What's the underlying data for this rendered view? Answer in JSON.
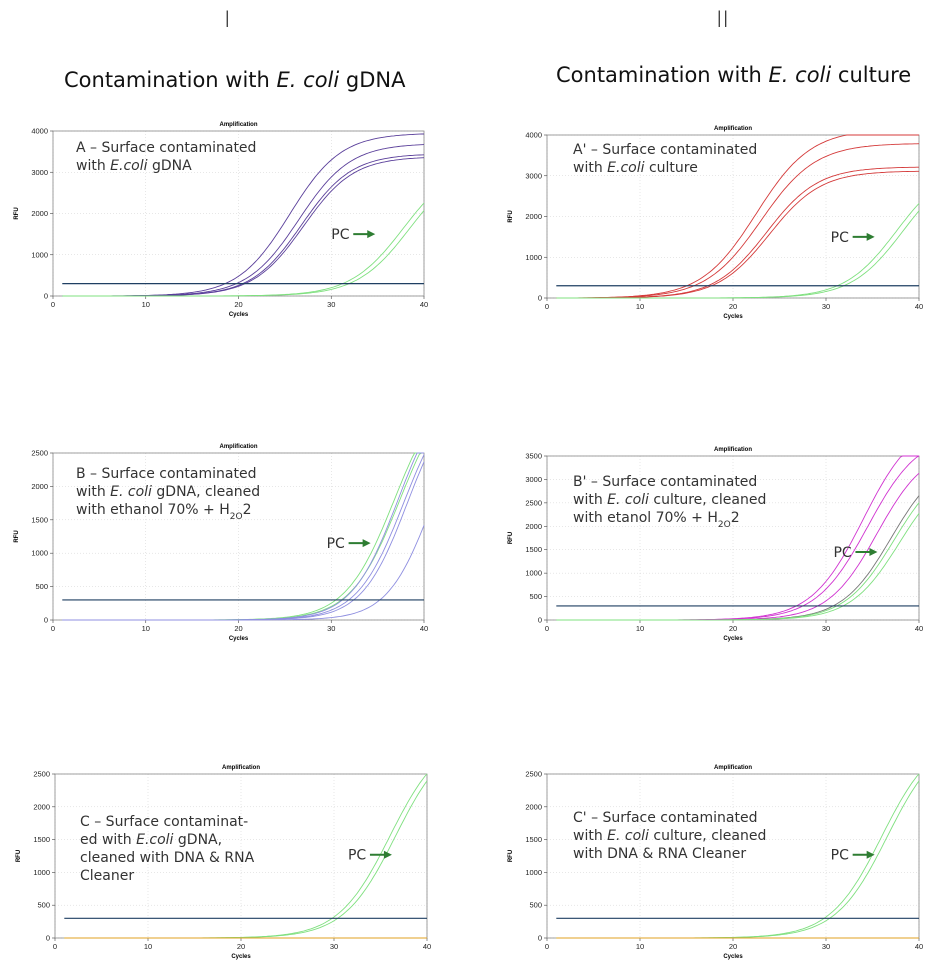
{
  "headers": {
    "col1_roman": "I",
    "col2_roman": "II",
    "col1_title_pre": "Contamination with ",
    "col1_title_italic": "E. coli",
    "col1_title_post": " gDNA",
    "col2_title_pre": "Contamination with ",
    "col2_title_italic": "E. coli",
    "col2_title_post": " culture"
  },
  "colors": {
    "threshold": "#1f3f62",
    "pc_curve": "#7fe07f",
    "pc_arrow": "#2e7d32",
    "series_A": "#5a3f9a",
    "series_A2": "#d43a3a",
    "series_B": "#8f8fe0",
    "series_B2": "#d033d0",
    "series_B2_dark": "#777777",
    "baseline_C": "#e0a020"
  },
  "chart_data": [
    {
      "id": "A",
      "type": "line",
      "title": "Amplification",
      "xlabel": "Cycles",
      "ylabel": "RFU",
      "xlim": [
        0,
        40
      ],
      "ylim": [
        0,
        4000
      ],
      "xticks": [
        0,
        10,
        20,
        30,
        40
      ],
      "yticks": [
        0,
        1000,
        2000,
        3000,
        4000
      ],
      "threshold": 300,
      "annotation": [
        "A – Surface contaminated",
        "with |E.coli| gDNA"
      ],
      "pc_label": "PC",
      "pc_label_pos": [
        30,
        1500
      ],
      "series": [
        {
          "group": "sample",
          "plateau": 3950,
          "mid": 25.5,
          "k": 0.36
        },
        {
          "group": "sample",
          "plateau": 3700,
          "mid": 26.5,
          "k": 0.36
        },
        {
          "group": "sample",
          "plateau": 3450,
          "mid": 26.8,
          "k": 0.37
        },
        {
          "group": "sample",
          "plateau": 3380,
          "mid": 27.0,
          "k": 0.37
        },
        {
          "group": "pc",
          "plateau": 3300,
          "mid": 37.8,
          "k": 0.35
        },
        {
          "group": "pc",
          "plateau": 3300,
          "mid": 38.5,
          "k": 0.35
        }
      ]
    },
    {
      "id": "A'",
      "type": "line",
      "title": "Amplification",
      "xlabel": "Cycles",
      "ylabel": "RFU",
      "xlim": [
        0,
        40
      ],
      "ylim": [
        0,
        4000
      ],
      "xticks": [
        0,
        10,
        20,
        30,
        40
      ],
      "yticks": [
        0,
        1000,
        2000,
        3000,
        4000
      ],
      "threshold": 300,
      "annotation": [
        "A' – Surface contaminated",
        "with |E.coli| culture"
      ],
      "pc_label": "PC",
      "pc_label_pos": [
        30.5,
        1500
      ],
      "series": [
        {
          "group": "sample",
          "plateau": 4150,
          "mid": 22.5,
          "k": 0.34
        },
        {
          "group": "sample",
          "plateau": 3800,
          "mid": 23.0,
          "k": 0.34
        },
        {
          "group": "sample",
          "plateau": 3220,
          "mid": 23.6,
          "k": 0.36
        },
        {
          "group": "sample",
          "plateau": 3120,
          "mid": 23.9,
          "k": 0.36
        },
        {
          "group": "pc",
          "plateau": 3300,
          "mid": 37.6,
          "k": 0.36
        },
        {
          "group": "pc",
          "plateau": 3300,
          "mid": 38.3,
          "k": 0.36
        }
      ]
    },
    {
      "id": "B",
      "type": "line",
      "title": "Amplification",
      "xlabel": "Cycles",
      "ylabel": "RFU",
      "xlim": [
        0,
        40
      ],
      "ylim": [
        0,
        2500
      ],
      "xticks": [
        0,
        10,
        20,
        30,
        40
      ],
      "yticks": [
        0,
        500,
        1000,
        1500,
        2000,
        2500
      ],
      "threshold": 300,
      "annotation": [
        "B – Surface contaminated",
        "with |E. coli| gDNA, cleaned",
        "with ethanol 70% + H$2O$2"
      ],
      "pc_label": "PC",
      "pc_label_pos": [
        29.5,
        1150
      ],
      "series": [
        {
          "group": "pc",
          "plateau": 3600,
          "mid": 36.8,
          "k": 0.38
        },
        {
          "group": "pc",
          "plateau": 3600,
          "mid": 37.4,
          "k": 0.38
        },
        {
          "group": "sample",
          "plateau": 3600,
          "mid": 37.2,
          "k": 0.4
        },
        {
          "group": "sample",
          "plateau": 3500,
          "mid": 37.8,
          "k": 0.4
        },
        {
          "group": "sample",
          "plateau": 3500,
          "mid": 38.2,
          "k": 0.41
        },
        {
          "group": "sample",
          "plateau": 3400,
          "mid": 40.8,
          "k": 0.42
        }
      ]
    },
    {
      "id": "B'",
      "type": "line",
      "title": "Amplification",
      "xlabel": "Cycles",
      "ylabel": "RFU",
      "xlim": [
        0,
        40
      ],
      "ylim": [
        0,
        3500
      ],
      "xticks": [
        0,
        10,
        20,
        30,
        40
      ],
      "yticks": [
        0,
        500,
        1000,
        1500,
        2000,
        2500,
        3000,
        3500
      ],
      "threshold": 300,
      "annotation": [
        "B' – Surface contaminated",
        "with |E. coli| culture, cleaned",
        "with etanol 70% + H$2O$2"
      ],
      "pc_label": "PC",
      "pc_label_pos": [
        30.8,
        1450
      ],
      "series": [
        {
          "group": "sample",
          "plateau": 4300,
          "mid": 34.0,
          "k": 0.36
        },
        {
          "group": "sample",
          "plateau": 4000,
          "mid": 34.5,
          "k": 0.36
        },
        {
          "group": "sample",
          "plateau": 3700,
          "mid": 35.5,
          "k": 0.38
        },
        {
          "group": "sample_dark",
          "plateau": 3500,
          "mid": 37.0,
          "k": 0.38
        },
        {
          "group": "pc",
          "plateau": 3400,
          "mid": 37.3,
          "k": 0.38
        },
        {
          "group": "pc",
          "plateau": 3300,
          "mid": 37.9,
          "k": 0.38
        }
      ]
    },
    {
      "id": "C",
      "type": "line",
      "title": "Amplification",
      "xlabel": "Cycles",
      "ylabel": "RFU",
      "xlim": [
        0,
        40
      ],
      "ylim": [
        0,
        2500
      ],
      "xticks": [
        0,
        10,
        20,
        30,
        40
      ],
      "yticks": [
        0,
        500,
        1000,
        1500,
        2000,
        2500
      ],
      "threshold": 300,
      "annotation": [
        "C – Surface contaminat-",
        "ed with |E.coli| gDNA,",
        "cleaned with DNA & RNA",
        "Cleaner"
      ],
      "pc_label": "PC",
      "pc_label_pos": [
        31.5,
        1270
      ],
      "series": [
        {
          "group": "pc",
          "plateau": 3100,
          "mid": 36.0,
          "k": 0.36
        },
        {
          "group": "pc",
          "plateau": 3100,
          "mid": 36.6,
          "k": 0.36
        },
        {
          "group": "baseline",
          "plateau": 0,
          "mid": 0,
          "k": 0
        }
      ]
    },
    {
      "id": "C'",
      "type": "line",
      "title": "Amplification",
      "xlabel": "Cycles",
      "ylabel": "RFU",
      "xlim": [
        0,
        40
      ],
      "ylim": [
        0,
        2500
      ],
      "xticks": [
        0,
        10,
        20,
        30,
        40
      ],
      "yticks": [
        0,
        500,
        1000,
        1500,
        2000,
        2500
      ],
      "threshold": 300,
      "annotation": [
        "C' – Surface contaminated",
        "with |E. coli| culture, cleaned",
        "with DNA & RNA Cleaner"
      ],
      "pc_label": "PC",
      "pc_label_pos": [
        30.5,
        1270
      ],
      "series": [
        {
          "group": "pc",
          "plateau": 3100,
          "mid": 36.0,
          "k": 0.36
        },
        {
          "group": "pc",
          "plateau": 3100,
          "mid": 36.6,
          "k": 0.36
        },
        {
          "group": "baseline",
          "plateau": 0,
          "mid": 0,
          "k": 0
        }
      ]
    }
  ]
}
